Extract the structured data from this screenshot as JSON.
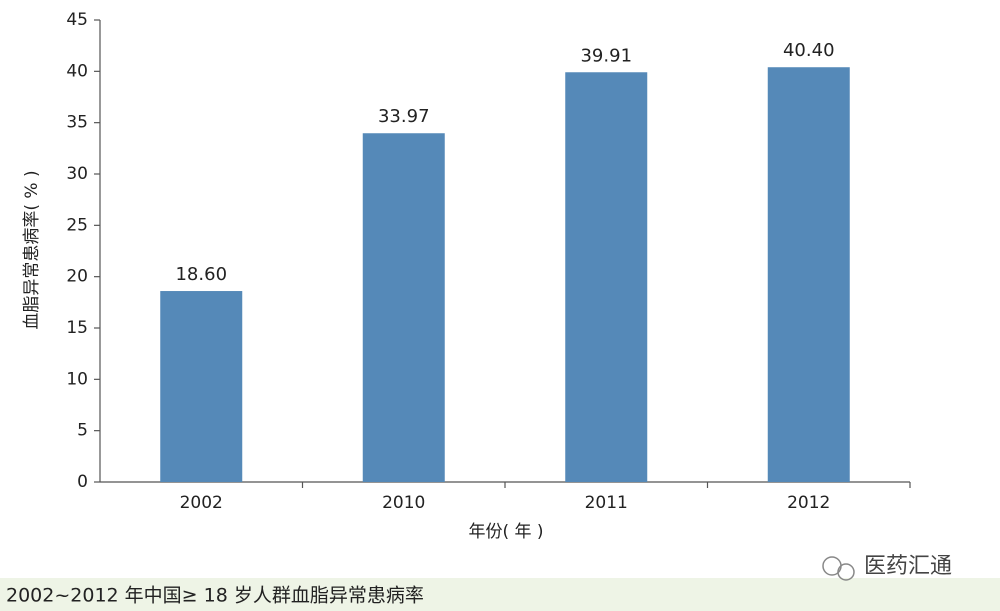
{
  "chart_data": {
    "type": "bar",
    "y_axis_label": "血脂异常患病率( % )",
    "x_axis_label": "年份( 年 )",
    "categories": [
      "2002",
      "2010",
      "2011",
      "2012"
    ],
    "values": [
      18.6,
      33.97,
      39.91,
      40.4
    ],
    "value_labels": [
      "18.60",
      "33.97",
      "39.91",
      "40.40"
    ],
    "color": "#5589b8",
    "ylim": [
      0,
      45
    ],
    "yticks": [
      0,
      5,
      10,
      15,
      20,
      25,
      30,
      35,
      40,
      45
    ],
    "grid": false
  },
  "caption": "2002~2012 年中国≥ 18 岁人群血脂异常患病率",
  "watermark": "医药汇通"
}
